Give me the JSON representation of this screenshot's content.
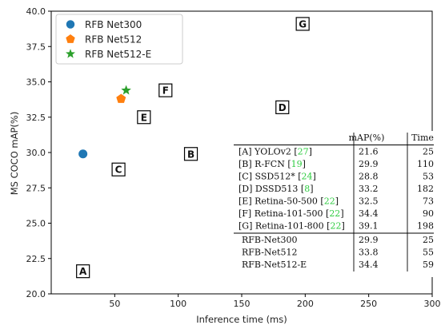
{
  "chart_data": {
    "type": "scatter",
    "title": "",
    "xlabel": "Inference time (ms)",
    "ylabel": "MS COCO mAP(%)",
    "xlim": [
      0,
      300
    ],
    "ylim": [
      20.0,
      40.0
    ],
    "x_ticks": [
      {
        "value": 50,
        "label": "50"
      },
      {
        "value": 100,
        "label": "100"
      },
      {
        "value": 150,
        "label": "150"
      },
      {
        "value": 200,
        "label": "200"
      },
      {
        "value": 250,
        "label": "250"
      },
      {
        "value": 300,
        "label": "300"
      }
    ],
    "y_ticks": [
      {
        "value": 20.0,
        "label": "20.0"
      },
      {
        "value": 22.5,
        "label": "22.5"
      },
      {
        "value": 25.0,
        "label": "25.0"
      },
      {
        "value": 27.5,
        "label": "27.5"
      },
      {
        "value": 30.0,
        "label": "30.0"
      },
      {
        "value": 32.5,
        "label": "32.5"
      },
      {
        "value": 35.0,
        "label": "35.0"
      },
      {
        "value": 37.5,
        "label": "37.5"
      },
      {
        "value": 40.0,
        "label": "40.0"
      }
    ],
    "grid": false,
    "legend_position": "top-left",
    "series": [
      {
        "name": "RFB Net300",
        "marker": "circle",
        "color": "#1f77b4",
        "points": [
          {
            "x": 25,
            "y": 29.9
          }
        ]
      },
      {
        "name": "RFB Net512",
        "marker": "pentagon",
        "color": "#ff7f0e",
        "points": [
          {
            "x": 55,
            "y": 33.8
          }
        ]
      },
      {
        "name": "RFB Net512-E",
        "marker": "star",
        "color": "#2ca02c",
        "points": [
          {
            "x": 59,
            "y": 34.4
          }
        ]
      }
    ],
    "annotations": [
      {
        "letter": "A",
        "x": 25,
        "y": 21.6
      },
      {
        "letter": "B",
        "x": 110,
        "y": 29.9
      },
      {
        "letter": "C",
        "x": 53,
        "y": 28.8
      },
      {
        "letter": "D",
        "x": 182,
        "y": 33.2
      },
      {
        "letter": "E",
        "x": 73,
        "y": 32.5
      },
      {
        "letter": "F",
        "x": 90,
        "y": 34.4
      },
      {
        "letter": "G",
        "x": 198,
        "y": 39.1
      }
    ],
    "table": {
      "headers": [
        "",
        "mAP(%)",
        "Time"
      ],
      "rows": [
        {
          "label": "[A] YOLOv2 ",
          "cite": "27",
          "map": "21.6",
          "time": "25"
        },
        {
          "label": "[B] R-FCN ",
          "cite": "19",
          "map": "29.9",
          "time": "110"
        },
        {
          "label": "[C] SSD512* ",
          "cite": "24",
          "map": "28.8",
          "time": "53"
        },
        {
          "label": "[D] DSSD513 ",
          "cite": "8",
          "map": "33.2",
          "time": "182"
        },
        {
          "label": "[E] Retina-50-500 ",
          "cite": "22",
          "map": "32.5",
          "time": "73"
        },
        {
          "label": "[F] Retina-101-500 ",
          "cite": "22",
          "map": "34.4",
          "time": "90"
        },
        {
          "label": "[G] Retina-101-800 ",
          "cite": "22",
          "map": "39.1",
          "time": "198"
        }
      ],
      "ours": [
        {
          "label": "RFB-Net300",
          "map": "29.9",
          "time": "25"
        },
        {
          "label": "RFB-Net512",
          "map": "33.8",
          "time": "55"
        },
        {
          "label": "RFB-Net512-E",
          "map": "34.4",
          "time": "59"
        }
      ]
    }
  }
}
